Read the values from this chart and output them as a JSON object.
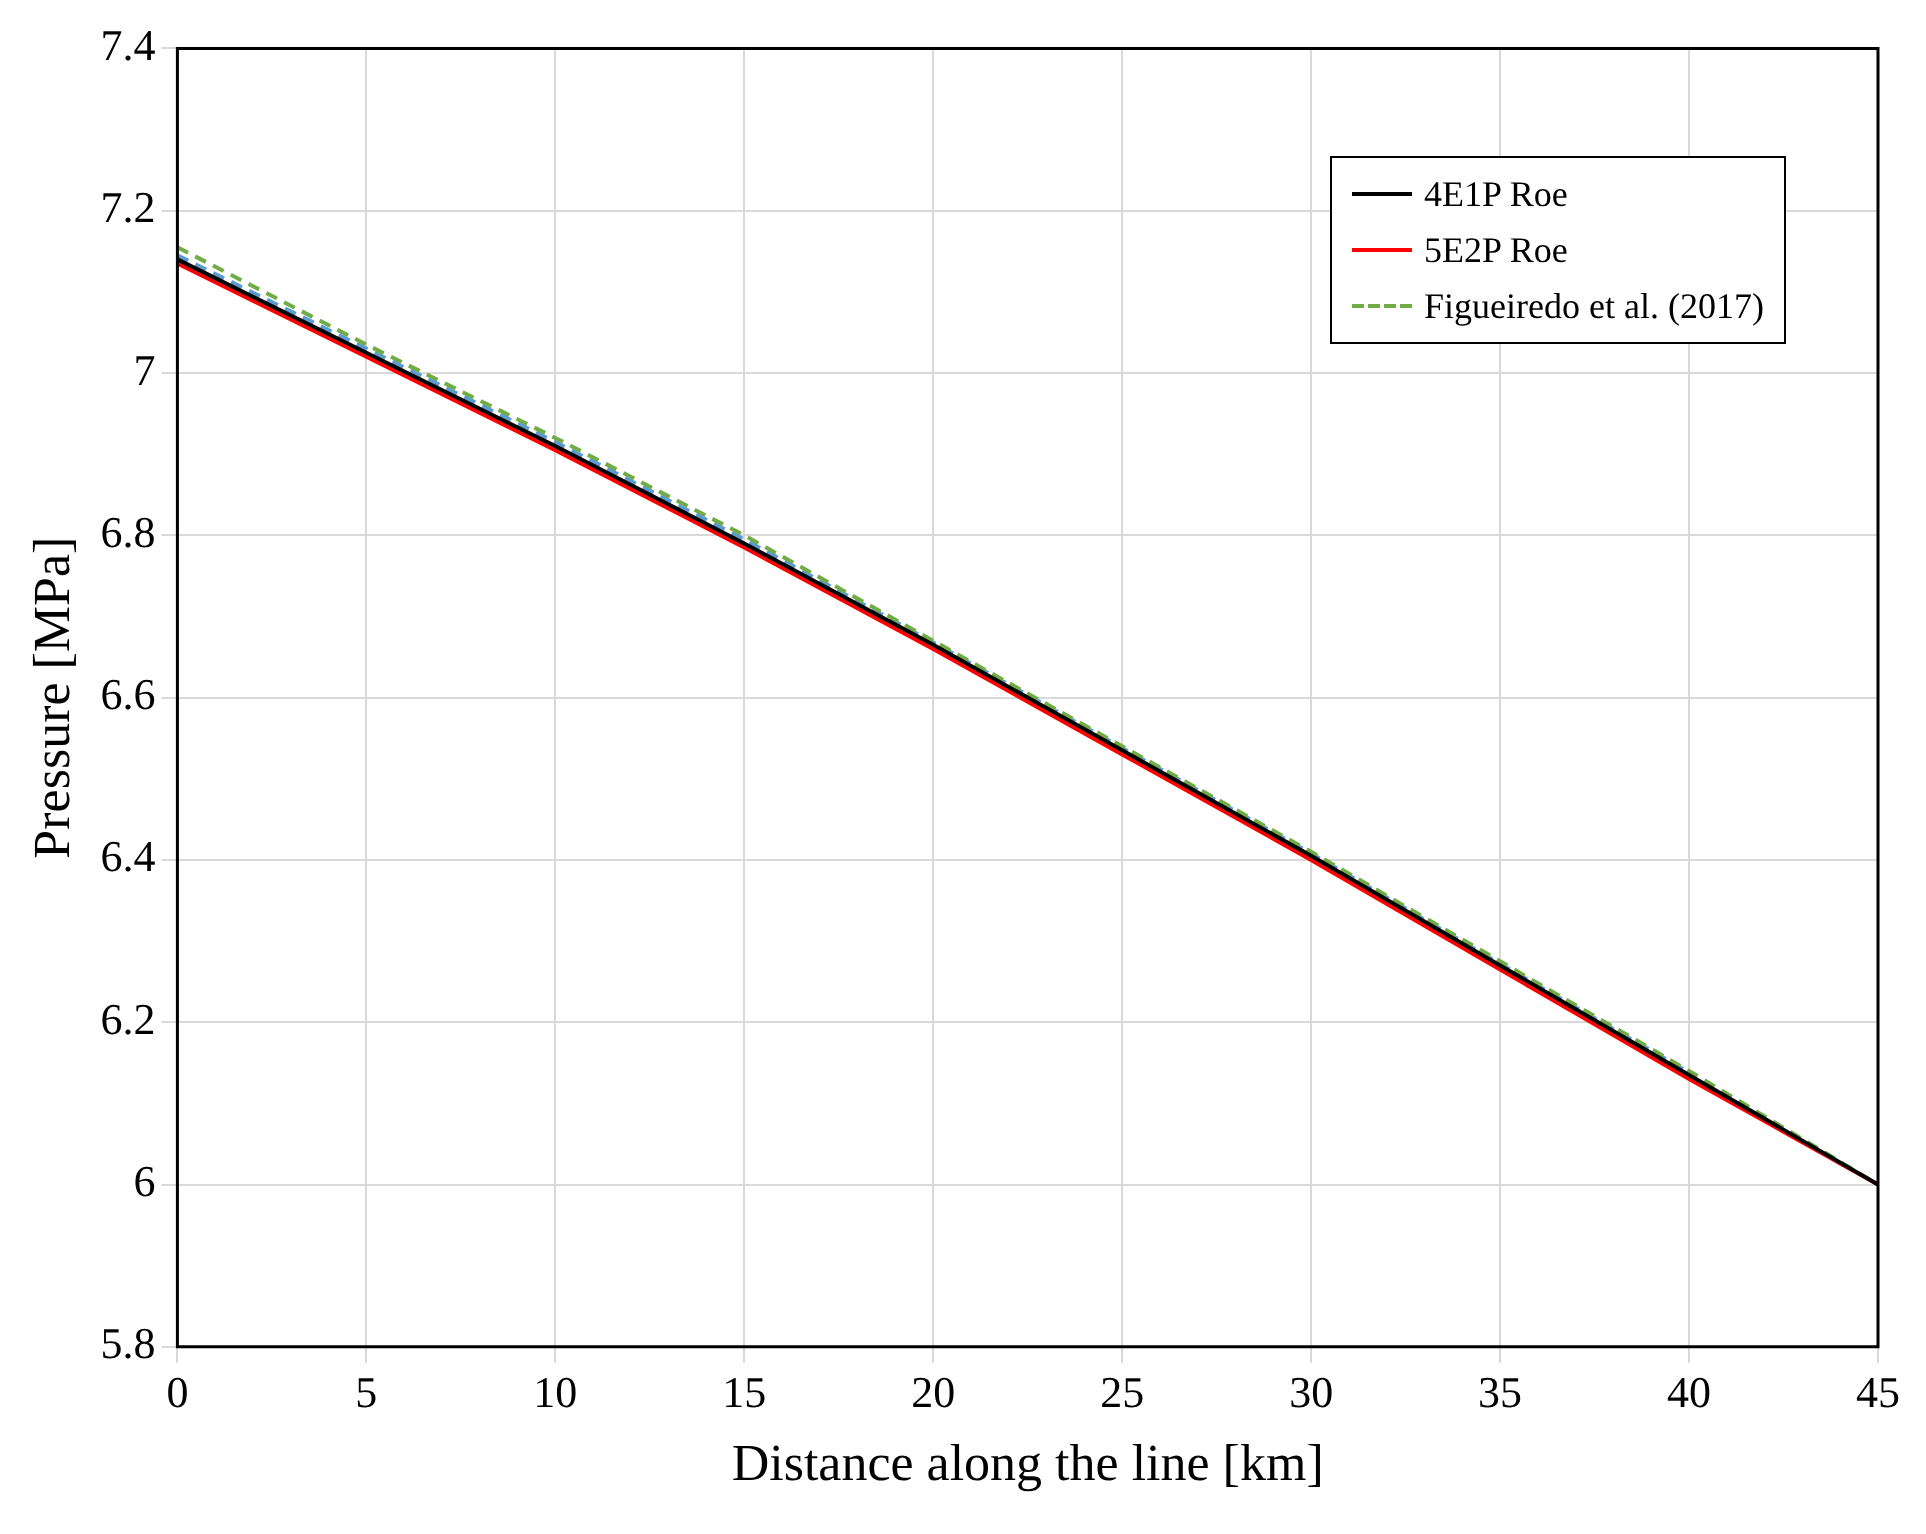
{
  "chart_data": {
    "type": "line",
    "xlabel": "Distance along the line [km]",
    "ylabel": "Pressure [MPa]",
    "x": [
      0,
      5,
      10,
      15,
      20,
      25,
      30,
      35,
      40,
      45
    ],
    "series": [
      {
        "name": "4E1P Roe",
        "color": "#000000",
        "line_style": "solid",
        "values": [
          7.14,
          7.025,
          6.91,
          6.79,
          6.665,
          6.535,
          6.405,
          6.27,
          6.135,
          6.0
        ]
      },
      {
        "name": "5E2P Roe",
        "color": "#ff0000",
        "line_style": "solid",
        "values": [
          7.135,
          7.02,
          6.905,
          6.785,
          6.66,
          6.53,
          6.4,
          6.265,
          6.13,
          6.0
        ]
      },
      {
        "name": "Figueiredo et al. (2017)",
        "color": "#70ad47",
        "line_style": "dashed",
        "values": [
          7.155,
          7.035,
          6.92,
          6.8,
          6.67,
          6.54,
          6.41,
          6.275,
          6.14,
          6.0
        ]
      },
      {
        "color": "#5b9bd5",
        "line_style": "dashed",
        "values": [
          7.145,
          7.03,
          6.915,
          6.795,
          6.668,
          6.538,
          6.408,
          6.272,
          6.138,
          null
        ]
      }
    ],
    "xlim": [
      0,
      45
    ],
    "xticks": [
      0,
      5,
      10,
      15,
      20,
      25,
      30,
      35,
      40,
      45
    ],
    "ylim": [
      5.8,
      7.4
    ],
    "yticks": [
      5.8,
      6,
      6.2,
      6.4,
      6.6,
      6.8,
      7,
      7.2,
      7.4
    ],
    "grid": true,
    "legend": "top right",
    "marker": "none"
  }
}
